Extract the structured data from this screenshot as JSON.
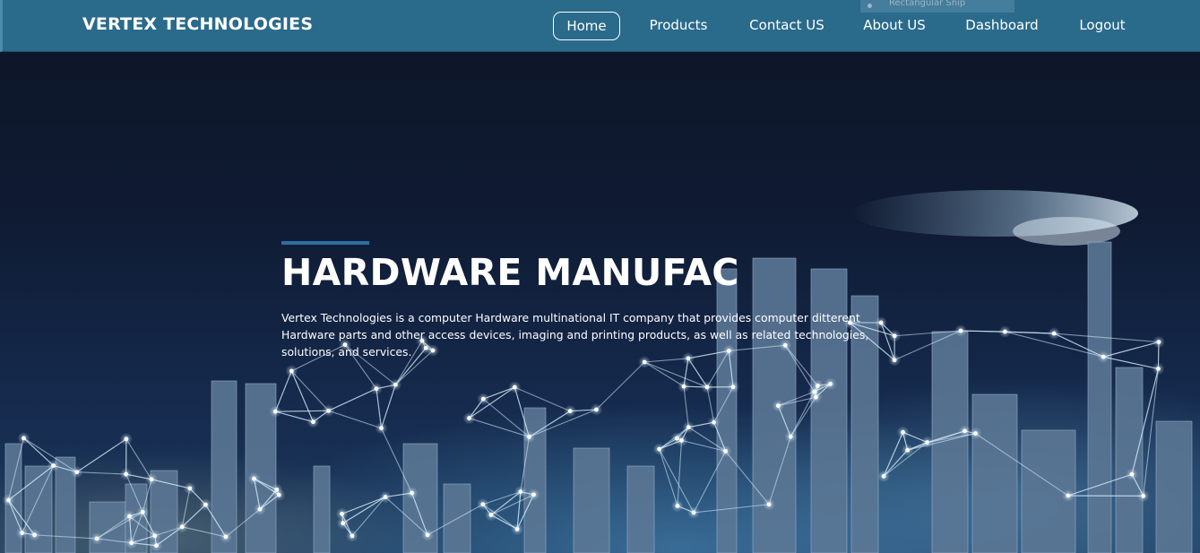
{
  "header": {
    "brand": "VERTEX TECHNOLOGIES",
    "nav": [
      {
        "label": "Home",
        "active": true
      },
      {
        "label": "Products",
        "active": false
      },
      {
        "label": "Contact US",
        "active": false
      },
      {
        "label": "About US",
        "active": false
      },
      {
        "label": "Dashboard",
        "active": false
      },
      {
        "label": "Logout",
        "active": false
      }
    ],
    "overlay_text": "Rectangular Snip"
  },
  "hero": {
    "title": "HARDWARE MANUFAC",
    "description": "Vertex Technologies is a computer Hardware multinational IT company that provides computer ditterent Hardware parts and other access devices, imaging and printing products, as well as related technologies, solutions, and services."
  },
  "colors": {
    "header_bg": "#2a6a8a",
    "accent": "#2c6fa0",
    "hero_bg": "#0f1b33",
    "text": "#ffffff"
  }
}
